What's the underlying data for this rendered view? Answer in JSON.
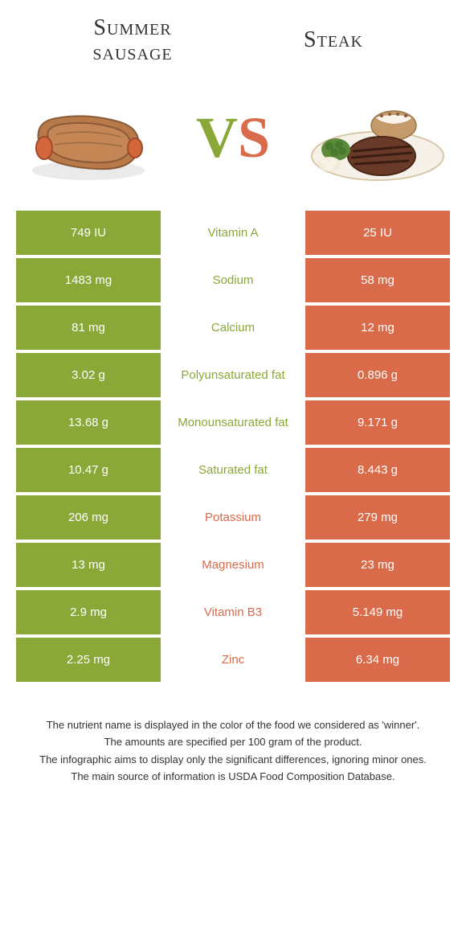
{
  "foods": {
    "left": {
      "name": "Summer\nsausage",
      "color": "#8aa838"
    },
    "right": {
      "name": "Steak",
      "color": "#d96a4a"
    }
  },
  "vs": {
    "v": "V",
    "s": "S"
  },
  "colors": {
    "left_cell": "#8aa838",
    "right_cell": "#d96a4a",
    "mid_left_text": "#8aa838",
    "mid_right_text": "#d96a4a",
    "background": "#ffffff"
  },
  "rows": [
    {
      "left": "749 IU",
      "label": "Vitamin A",
      "right": "25 IU",
      "winner": "left"
    },
    {
      "left": "1483 mg",
      "label": "Sodium",
      "right": "58 mg",
      "winner": "left"
    },
    {
      "left": "81 mg",
      "label": "Calcium",
      "right": "12 mg",
      "winner": "left"
    },
    {
      "left": "3.02 g",
      "label": "Polyunsaturated fat",
      "right": "0.896 g",
      "winner": "left"
    },
    {
      "left": "13.68 g",
      "label": "Monounsaturated fat",
      "right": "9.171 g",
      "winner": "left"
    },
    {
      "left": "10.47 g",
      "label": "Saturated fat",
      "right": "8.443 g",
      "winner": "left"
    },
    {
      "left": "206 mg",
      "label": "Potassium",
      "right": "279 mg",
      "winner": "right"
    },
    {
      "left": "13 mg",
      "label": "Magnesium",
      "right": "23 mg",
      "winner": "right"
    },
    {
      "left": "2.9 mg",
      "label": "Vitamin B3",
      "right": "5.149 mg",
      "winner": "right"
    },
    {
      "left": "2.25 mg",
      "label": "Zinc",
      "right": "6.34 mg",
      "winner": "right"
    }
  ],
  "footer": [
    "The nutrient name is displayed in the color of the food we considered as 'winner'.",
    "The amounts are specified per 100 gram of the product.",
    "The infographic aims to display only the significant differences, ignoring minor ones.",
    "The main source of information is USDA Food Composition Database."
  ]
}
